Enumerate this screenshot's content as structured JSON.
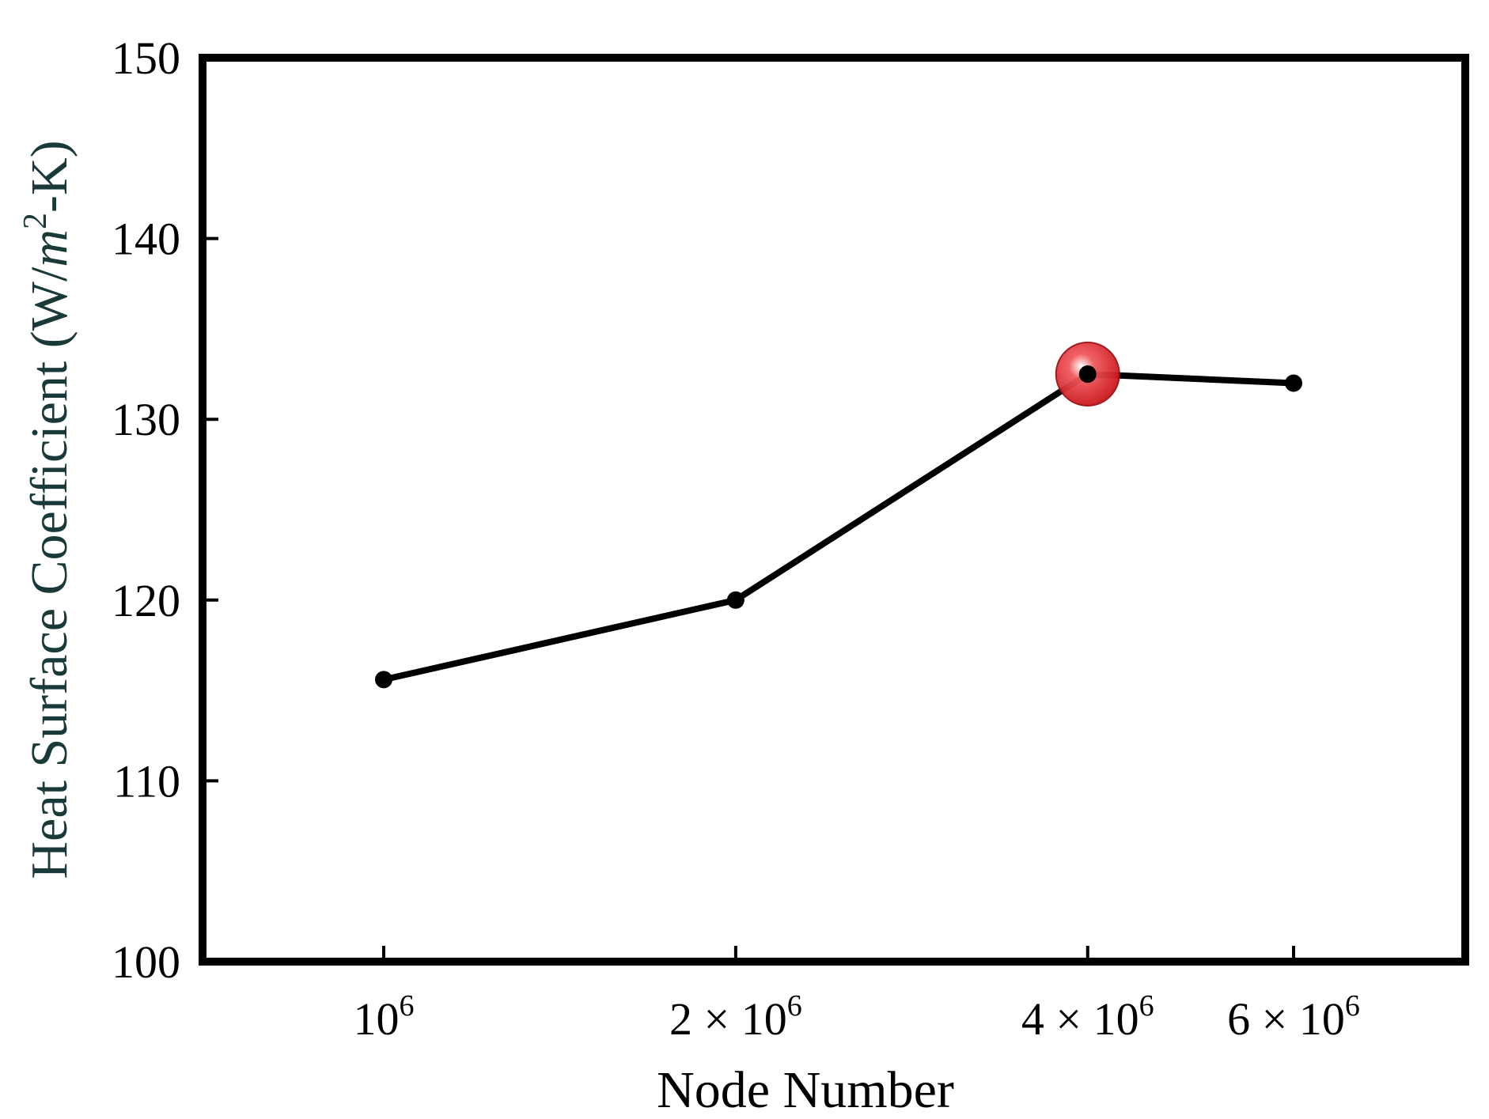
{
  "chart_data": {
    "type": "line",
    "title": "",
    "xlabel": "Node Number",
    "ylabel": {
      "main": "Heat Surface Coefficient (W/",
      "var": "m",
      "sup": "2",
      "tail": "-K)"
    },
    "x_ticks": [
      {
        "value": 1000000,
        "base": "10",
        "exp": "6",
        "coef": ""
      },
      {
        "value": 2000000,
        "base": "10",
        "exp": "6",
        "coef": "2 × "
      },
      {
        "value": 4000000,
        "base": "10",
        "exp": "6",
        "coef": "4 × "
      },
      {
        "value": 6000000,
        "base": "10",
        "exp": "6",
        "coef": "6 × "
      }
    ],
    "y_ticks": [
      100,
      110,
      120,
      130,
      140,
      150
    ],
    "xlim": [
      1000000,
      6000000
    ],
    "ylim": [
      100,
      150
    ],
    "x_scale": "log",
    "grid": false,
    "legend": "none",
    "series": [
      {
        "x": [
          1000000,
          2000000,
          4000000,
          6000000
        ],
        "y": [
          115.6,
          120.0,
          132.5,
          132.0
        ]
      }
    ],
    "highlight": {
      "x": 4000000,
      "y": 132.5,
      "color": "#e8191e"
    },
    "colors": {
      "line": "#000000",
      "marker": "#000000",
      "frame": "#000000",
      "ylabel": "#1a3a3a",
      "xlabel": "#000000"
    }
  }
}
